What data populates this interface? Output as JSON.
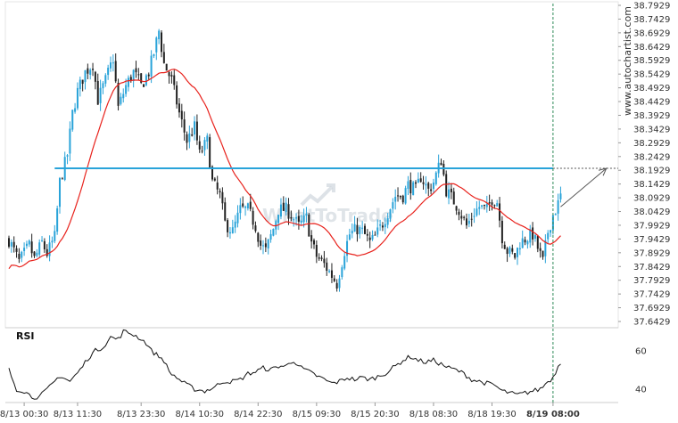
{
  "watermark": "WhatToTrade",
  "brand": "www.autochartist.com",
  "rsi_label": "RSI",
  "chart_data": [
    {
      "type": "candlestick",
      "title": "",
      "y_ticks": [
        "38.7929",
        "38.7429",
        "38.6929",
        "38.6429",
        "38.5929",
        "38.5429",
        "38.4929",
        "38.4429",
        "38.3929",
        "38.3429",
        "38.2929",
        "38.2429",
        "38.1929",
        "38.1429",
        "38.0929",
        "38.0429",
        "37.9929",
        "37.9429",
        "37.8929",
        "37.8429",
        "37.7929",
        "37.7429",
        "37.6929",
        "37.6429"
      ],
      "ylim": [
        37.6429,
        38.7929
      ],
      "x_ticks": [
        "8/13 00:30",
        "8/13 11:30",
        "8/13 23:30",
        "8/14 10:30",
        "8/14 22:30",
        "8/15 09:30",
        "8/15 20:30",
        "8/18 08:30",
        "8/18 19:30",
        "8/19 08:00"
      ],
      "x_tick_index": [
        6,
        27,
        52,
        75,
        98,
        121,
        144,
        167,
        190,
        214
      ],
      "candle_count": 218,
      "current_time_index": 214,
      "resistance_level": 38.2,
      "projection": {
        "from_index": 217,
        "from_value": 38.06,
        "to_index": 235,
        "to_value": 38.2
      },
      "price_anchors": [
        [
          0,
          37.94
        ],
        [
          4,
          37.86
        ],
        [
          8,
          37.92
        ],
        [
          10,
          37.87
        ],
        [
          13,
          37.93
        ],
        [
          15,
          37.89
        ],
        [
          18,
          37.95
        ],
        [
          20,
          38.15
        ],
        [
          23,
          38.25
        ],
        [
          25,
          38.4
        ],
        [
          27,
          38.48
        ],
        [
          30,
          38.55
        ],
        [
          33,
          38.58
        ],
        [
          35,
          38.45
        ],
        [
          38,
          38.52
        ],
        [
          41,
          38.6
        ],
        [
          43,
          38.42
        ],
        [
          46,
          38.5
        ],
        [
          49,
          38.55
        ],
        [
          52,
          38.5
        ],
        [
          55,
          38.55
        ],
        [
          57,
          38.62
        ],
        [
          59,
          38.7
        ],
        [
          61,
          38.58
        ],
        [
          64,
          38.52
        ],
        [
          67,
          38.4
        ],
        [
          70,
          38.3
        ],
        [
          73,
          38.35
        ],
        [
          75,
          38.25
        ],
        [
          78,
          38.3
        ],
        [
          80,
          38.15
        ],
        [
          83,
          38.1
        ],
        [
          85,
          38.0
        ],
        [
          88,
          37.97
        ],
        [
          91,
          38.05
        ],
        [
          94,
          38.05
        ],
        [
          97,
          37.99
        ],
        [
          99,
          37.92
        ],
        [
          101,
          37.9
        ],
        [
          104,
          37.98
        ],
        [
          106,
          38.05
        ],
        [
          109,
          38.05
        ],
        [
          111,
          38.03
        ],
        [
          114,
          37.99
        ],
        [
          117,
          38.02
        ],
        [
          119,
          37.93
        ],
        [
          121,
          37.88
        ],
        [
          124,
          37.85
        ],
        [
          127,
          37.81
        ],
        [
          129,
          37.78
        ],
        [
          132,
          37.9
        ],
        [
          134,
          37.96
        ],
        [
          137,
          37.98
        ],
        [
          139,
          37.97
        ],
        [
          142,
          37.93
        ],
        [
          144,
          37.95
        ],
        [
          147,
          38.0
        ],
        [
          150,
          38.06
        ],
        [
          152,
          38.1
        ],
        [
          155,
          38.1
        ],
        [
          157,
          38.14
        ],
        [
          160,
          38.12
        ],
        [
          162,
          38.17
        ],
        [
          165,
          38.12
        ],
        [
          167,
          38.15
        ],
        [
          170,
          38.23
        ],
        [
          172,
          38.12
        ],
        [
          175,
          38.08
        ],
        [
          177,
          38.05
        ],
        [
          180,
          37.99
        ],
        [
          183,
          38.04
        ],
        [
          185,
          38.06
        ],
        [
          188,
          38.05
        ],
        [
          190,
          38.09
        ],
        [
          192,
          38.08
        ],
        [
          194,
          37.95
        ],
        [
          196,
          37.9
        ],
        [
          199,
          37.88
        ],
        [
          201,
          37.93
        ],
        [
          204,
          37.95
        ],
        [
          206,
          37.96
        ],
        [
          208,
          37.91
        ],
        [
          210,
          37.86
        ],
        [
          212,
          37.97
        ],
        [
          214,
          38.03
        ],
        [
          216,
          38.07
        ],
        [
          217,
          38.1
        ]
      ],
      "series": [
        {
          "name": "",
          "kind": "candles",
          "up_color": "#29a3d9",
          "down_color": "#222222"
        },
        {
          "name": "",
          "kind": "moving-average",
          "color": "#e8221c"
        }
      ],
      "colors": {
        "resistance": "#29a3d9",
        "projection": "#555555",
        "current_time": "#2e8b57"
      }
    },
    {
      "type": "line",
      "title": "RSI",
      "y_ticks": [
        "60",
        "40"
      ],
      "ylim": [
        33,
        72
      ],
      "rsi_anchors": [
        [
          0,
          50
        ],
        [
          3,
          40
        ],
        [
          6,
          39
        ],
        [
          9,
          36
        ],
        [
          12,
          36
        ],
        [
          16,
          41
        ],
        [
          20,
          47
        ],
        [
          24,
          44
        ],
        [
          28,
          50
        ],
        [
          31,
          56
        ],
        [
          34,
          60
        ],
        [
          37,
          62
        ],
        [
          40,
          67
        ],
        [
          43,
          66
        ],
        [
          45,
          70
        ],
        [
          48,
          69
        ],
        [
          51,
          67
        ],
        [
          54,
          64
        ],
        [
          56,
          60
        ],
        [
          58,
          58
        ],
        [
          61,
          55
        ],
        [
          63,
          49
        ],
        [
          66,
          46
        ],
        [
          69,
          43
        ],
        [
          73,
          40
        ],
        [
          77,
          39
        ],
        [
          81,
          41
        ],
        [
          84,
          44
        ],
        [
          88,
          44
        ],
        [
          91,
          45
        ],
        [
          94,
          48
        ],
        [
          97,
          49
        ],
        [
          100,
          51
        ],
        [
          103,
          50
        ],
        [
          106,
          52
        ],
        [
          109,
          52
        ],
        [
          112,
          55
        ],
        [
          115,
          51
        ],
        [
          118,
          49
        ],
        [
          121,
          47
        ],
        [
          124,
          45
        ],
        [
          127,
          43
        ],
        [
          130,
          44
        ],
        [
          133,
          46
        ],
        [
          136,
          45
        ],
        [
          139,
          46
        ],
        [
          142,
          45
        ],
        [
          146,
          47
        ],
        [
          149,
          49
        ],
        [
          152,
          52
        ],
        [
          155,
          55
        ],
        [
          158,
          57
        ],
        [
          161,
          55
        ],
        [
          164,
          54
        ],
        [
          167,
          55
        ],
        [
          170,
          53
        ],
        [
          173,
          51
        ],
        [
          176,
          50
        ],
        [
          179,
          48
        ],
        [
          182,
          45
        ],
        [
          185,
          44
        ],
        [
          188,
          43
        ],
        [
          191,
          42
        ],
        [
          194,
          39
        ],
        [
          197,
          38
        ],
        [
          200,
          37
        ],
        [
          203,
          38
        ],
        [
          206,
          39
        ],
        [
          209,
          40
        ],
        [
          212,
          44
        ],
        [
          214,
          46
        ],
        [
          216,
          52
        ],
        [
          217,
          54
        ]
      ],
      "color": "#111111"
    }
  ]
}
